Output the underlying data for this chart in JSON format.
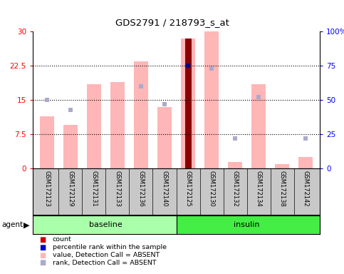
{
  "title": "GDS2791 / 218793_s_at",
  "samples": [
    "GSM172123",
    "GSM172129",
    "GSM172131",
    "GSM172133",
    "GSM172136",
    "GSM172140",
    "GSM172125",
    "GSM172130",
    "GSM172132",
    "GSM172134",
    "GSM172138",
    "GSM172142"
  ],
  "groups": [
    "baseline",
    "baseline",
    "baseline",
    "baseline",
    "baseline",
    "baseline",
    "insulin",
    "insulin",
    "insulin",
    "insulin",
    "insulin",
    "insulin"
  ],
  "value_bars": [
    11.5,
    9.5,
    18.5,
    19.0,
    23.5,
    13.5,
    28.5,
    30.0,
    1.5,
    18.5,
    1.0,
    2.5
  ],
  "rank_dots_pct": [
    50,
    43,
    null,
    null,
    60,
    47,
    75,
    73,
    22,
    52,
    null,
    22
  ],
  "count_bar_val": 28.5,
  "count_bar_idx": 6,
  "percentile_dot_val": 75,
  "percentile_dot_idx": 6,
  "left_ylim": [
    0,
    30
  ],
  "right_ylim": [
    0,
    100
  ],
  "left_yticks": [
    0,
    7.5,
    15,
    22.5,
    30
  ],
  "right_yticks": [
    0,
    25,
    50,
    75,
    100
  ],
  "left_yticklabels": [
    "0",
    "7.5",
    "15",
    "22.5",
    "30"
  ],
  "right_yticklabels": [
    "0",
    "25",
    "50",
    "75",
    "100%"
  ],
  "dotted_lines_pct": [
    25,
    50,
    75
  ],
  "bar_color_absent": "#FFB6B6",
  "rank_dot_color_absent": "#AAAACC",
  "count_bar_color": "#8B0000",
  "percentile_dot_color": "#00008B",
  "baseline_bg": "#AAFFAA",
  "insulin_bg": "#44EE44",
  "agent_label": "agent",
  "baseline_label": "baseline",
  "insulin_label": "insulin",
  "legend_items": [
    "count",
    "percentile rank within the sample",
    "value, Detection Call = ABSENT",
    "rank, Detection Call = ABSENT"
  ],
  "legend_colors": [
    "#CC0000",
    "#0000CC",
    "#FFB6B6",
    "#AAAACC"
  ]
}
